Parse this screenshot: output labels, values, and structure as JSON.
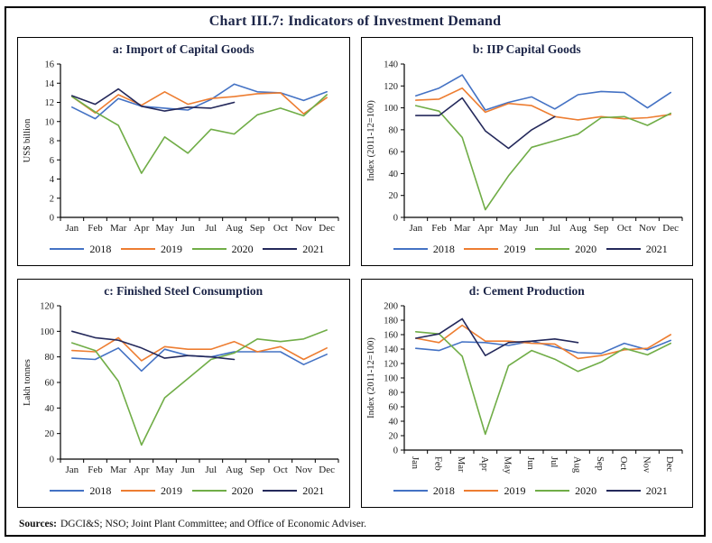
{
  "title": "Chart III.7: Indicators of Investment Demand",
  "sources": {
    "label": "Sources:",
    "text": "DGCI&S; NSO; Joint Plant Committee; and Office of Economic Adviser."
  },
  "colors": {
    "heading": "#1B2447",
    "axis": "#000000",
    "s2018": "#4472C4",
    "s2019": "#ED7D31",
    "s2020": "#70AD47",
    "s2021": "#24295B"
  },
  "legend": {
    "entries": [
      {
        "label": "2018",
        "color": "#4472C4"
      },
      {
        "label": "2019",
        "color": "#ED7D31"
      },
      {
        "label": "2020",
        "color": "#70AD47"
      },
      {
        "label": "2021",
        "color": "#24295B"
      }
    ]
  },
  "chart_data": [
    {
      "key": "a",
      "type": "line",
      "title": "a: Import of Capital Goods",
      "ylabel": "US$ billion",
      "ylim": [
        0,
        16
      ],
      "ystep": 2,
      "grid": false,
      "legend_position": "bottom",
      "x_labels_rotated": false,
      "categories": [
        "Jan",
        "Feb",
        "Mar",
        "Apr",
        "May",
        "Jun",
        "Jul",
        "Aug",
        "Sep",
        "Oct",
        "Nov",
        "Dec"
      ],
      "series": [
        {
          "name": "2018",
          "values": [
            11.5,
            10.3,
            12.4,
            11.6,
            11.4,
            11.2,
            12.3,
            13.9,
            13.1,
            13.0,
            12.2,
            13.1
          ]
        },
        {
          "name": "2019",
          "values": [
            12.6,
            10.9,
            12.8,
            11.7,
            13.1,
            11.8,
            12.4,
            12.6,
            12.9,
            13.0,
            10.8,
            12.5
          ]
        },
        {
          "name": "2020",
          "values": [
            12.6,
            11.0,
            9.6,
            4.6,
            8.4,
            6.7,
            9.2,
            8.7,
            10.7,
            11.4,
            10.6,
            12.8
          ]
        },
        {
          "name": "2021",
          "values": [
            12.7,
            11.8,
            13.4,
            11.6,
            11.1,
            11.5,
            11.4,
            12.0
          ]
        }
      ]
    },
    {
      "key": "b",
      "type": "line",
      "title": "b: IIP Capital Goods",
      "ylabel": "Index (2011-12=100)",
      "ylim": [
        0,
        140
      ],
      "ystep": 20,
      "grid": false,
      "legend_position": "bottom",
      "x_labels_rotated": false,
      "categories": [
        "Jan",
        "Feb",
        "Mar",
        "Apr",
        "May",
        "Jun",
        "Jul",
        "Aug",
        "Sep",
        "Oct",
        "Nov",
        "Dec"
      ],
      "series": [
        {
          "name": "2018",
          "values": [
            111,
            118,
            130,
            98,
            105,
            110,
            99,
            112,
            115,
            114,
            100,
            114
          ]
        },
        {
          "name": "2019",
          "values": [
            107,
            108,
            118,
            96,
            104,
            102,
            92,
            89,
            92,
            90,
            91,
            94
          ]
        },
        {
          "name": "2020",
          "values": [
            102,
            97,
            73,
            7,
            38,
            64,
            70,
            76,
            91,
            92,
            84,
            95
          ]
        },
        {
          "name": "2021",
          "values": [
            93,
            93,
            109,
            79,
            63,
            80,
            92
          ]
        }
      ]
    },
    {
      "key": "c",
      "type": "line",
      "title": "c: Finished Steel Consumption",
      "ylabel": "Lakh tonnes",
      "ylim": [
        0,
        120
      ],
      "ystep": 20,
      "grid": false,
      "legend_position": "bottom",
      "x_labels_rotated": false,
      "categories": [
        "Jan",
        "Feb",
        "Mar",
        "Apr",
        "May",
        "Jun",
        "Jul",
        "Aug",
        "Sep",
        "Oct",
        "Nov",
        "Dec"
      ],
      "series": [
        {
          "name": "2018",
          "values": [
            79,
            78,
            87,
            69,
            86,
            81,
            80,
            84,
            84,
            84,
            74,
            82
          ]
        },
        {
          "name": "2019",
          "values": [
            85,
            84,
            95,
            77,
            88,
            86,
            86,
            92,
            84,
            88,
            78,
            87
          ]
        },
        {
          "name": "2020",
          "values": [
            91,
            85,
            61,
            11,
            48,
            63,
            78,
            83,
            94,
            92,
            94,
            101
          ]
        },
        {
          "name": "2021",
          "values": [
            100,
            95,
            93,
            87,
            79,
            81,
            80,
            78
          ]
        }
      ]
    },
    {
      "key": "d",
      "type": "line",
      "title": "d: Cement Production",
      "ylabel": "Index (2011-12=100)",
      "ylim": [
        0,
        200
      ],
      "ystep": 20,
      "grid": false,
      "legend_position": "bottom",
      "x_labels_rotated": true,
      "categories": [
        "Jan",
        "Feb",
        "Mar",
        "Apr",
        "May",
        "Jun",
        "Jul",
        "Aug",
        "Sep",
        "Oct",
        "Nov",
        "Dec"
      ],
      "series": [
        {
          "name": "2018",
          "values": [
            141,
            138,
            150,
            149,
            145,
            151,
            143,
            135,
            134,
            148,
            139,
            152
          ]
        },
        {
          "name": "2019",
          "values": [
            155,
            149,
            173,
            151,
            151,
            148,
            147,
            127,
            131,
            139,
            141,
            160
          ]
        },
        {
          "name": "2020",
          "values": [
            164,
            161,
            130,
            22,
            117,
            138,
            126,
            109,
            122,
            141,
            132,
            148
          ]
        },
        {
          "name": "2021",
          "values": [
            155,
            161,
            182,
            131,
            149,
            151,
            154,
            149
          ]
        }
      ]
    }
  ]
}
